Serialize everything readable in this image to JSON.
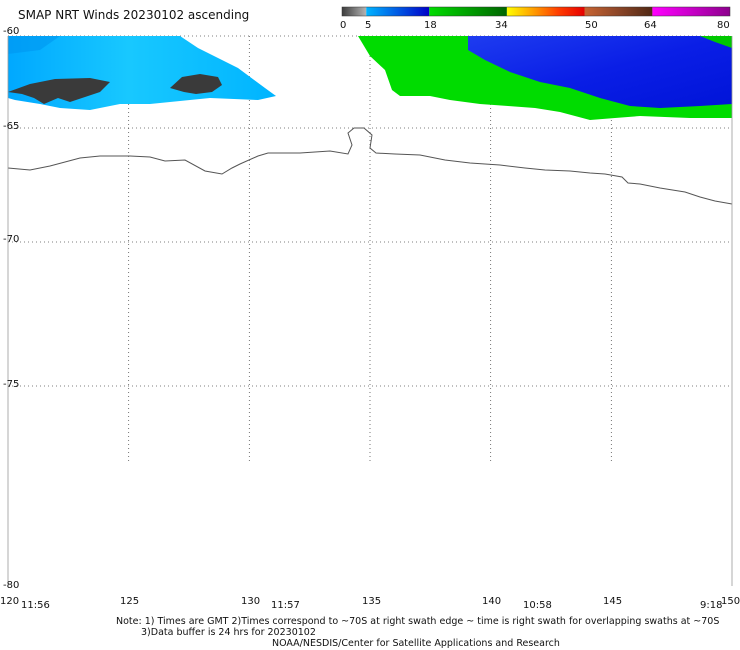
{
  "title": "SMAP NRT Winds 20230102 ascending",
  "colorbar": {
    "labels": [
      "0",
      "5",
      "18",
      "34",
      "50",
      "64",
      "80"
    ],
    "stops": [
      {
        "from": 0,
        "to": 5,
        "colors": [
          "#3c3c3c",
          "#b4b4b4"
        ]
      },
      {
        "from": 5,
        "to": 18,
        "colors": [
          "#00b4ff",
          "#0000c8"
        ]
      },
      {
        "from": 18,
        "to": 34,
        "colors": [
          "#00dc00",
          "#006400"
        ]
      },
      {
        "from": 34,
        "to": 50,
        "colors": [
          "#ffff00",
          "#ffa000",
          "#ff3c00",
          "#e60000"
        ]
      },
      {
        "from": 50,
        "to": 64,
        "colors": [
          "#c86432",
          "#8c4628",
          "#502814"
        ]
      },
      {
        "from": 64,
        "to": 80,
        "colors": [
          "#ff00ff",
          "#c800c8",
          "#8c008c"
        ]
      }
    ]
  },
  "map": {
    "lon_range": [
      120,
      150
    ],
    "lat_range": [
      -80,
      -60
    ],
    "lon_ticks": [
      {
        "value": 120,
        "label": "120"
      },
      {
        "value": 125,
        "label": "125"
      },
      {
        "value": 130,
        "label": "130"
      },
      {
        "value": 135,
        "label": "135"
      },
      {
        "value": 140,
        "label": "140"
      },
      {
        "value": 145,
        "label": "145"
      },
      {
        "value": 150,
        "label": "150"
      }
    ],
    "lat_ticks": [
      {
        "value": -60,
        "label": "-60"
      },
      {
        "value": -65,
        "label": "-65"
      },
      {
        "value": -70,
        "label": "-70"
      },
      {
        "value": -75,
        "label": "-75"
      },
      {
        "value": -80,
        "label": "-80"
      }
    ],
    "swath_times": [
      {
        "lon": 121,
        "label": "11:56"
      },
      {
        "lon": 131.5,
        "label": "11:57"
      },
      {
        "lon": 141.5,
        "label": "10:58"
      },
      {
        "lon": 149.2,
        "label": "9:18"
      }
    ]
  },
  "notes": {
    "line1": "Note: 1) Times are GMT 2)Times correspond to ~70S at right swath edge ~ time is right swath for overlapping swaths at ~70S",
    "line2": "3)Data buffer is 24 hrs for 20230102",
    "line3": "NOAA/NESDIS/Center for Satellite Applications and Research"
  }
}
